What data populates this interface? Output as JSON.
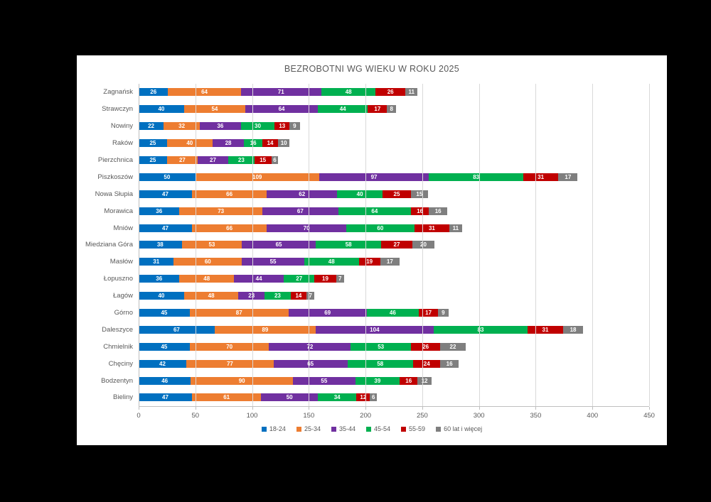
{
  "chart_data": {
    "type": "bar",
    "orientation": "horizontal",
    "stacked": true,
    "title": "BEZROBOTNI WG WIEKU W ROKU 2025",
    "categories": [
      "Zagnańsk",
      "Strawczyn",
      "Nowiny",
      "Raków",
      "Pierzchnica",
      "Piszkoszów",
      "Nowa Słupia",
      "Morawica",
      "Mniów",
      "Miedziana Góra",
      "Masłów",
      "Łopuszno",
      "Łagów",
      "Górno",
      "Daleszyce",
      "Chmielnik",
      "Chęciny",
      "Bodzentyn",
      "Bieliny"
    ],
    "series": [
      {
        "name": "18-24",
        "color": "#0070C0",
        "values": [
          26,
          40,
          22,
          25,
          25,
          50,
          47,
          36,
          47,
          38,
          31,
          36,
          40,
          45,
          67,
          45,
          42,
          46,
          47
        ]
      },
      {
        "name": "25-34",
        "color": "#ED7D31",
        "values": [
          64,
          54,
          32,
          40,
          27,
          109,
          66,
          73,
          66,
          53,
          60,
          48,
          48,
          87,
          89,
          70,
          77,
          90,
          61
        ]
      },
      {
        "name": "35-44",
        "color": "#7030A0",
        "values": [
          71,
          64,
          36,
          28,
          27,
          97,
          62,
          67,
          70,
          65,
          55,
          44,
          23,
          69,
          104,
          72,
          65,
          55,
          50
        ]
      },
      {
        "name": "45-54",
        "color": "#00B050",
        "values": [
          48,
          44,
          30,
          16,
          23,
          83,
          40,
          64,
          60,
          58,
          48,
          27,
          23,
          46,
          83,
          53,
          58,
          39,
          34
        ]
      },
      {
        "name": "55-59",
        "color": "#C00000",
        "values": [
          26,
          17,
          13,
          14,
          15,
          31,
          25,
          16,
          31,
          27,
          19,
          19,
          14,
          17,
          31,
          26,
          24,
          16,
          12
        ]
      },
      {
        "name": "60 lat i więcej",
        "color": "#7F7F7F",
        "values": [
          11,
          8,
          9,
          10,
          6,
          17,
          15,
          16,
          11,
          20,
          17,
          7,
          7,
          9,
          18,
          22,
          16,
          12,
          6
        ]
      }
    ],
    "x_ticks": [
      0,
      50,
      100,
      150,
      200,
      250,
      300,
      350,
      400,
      450
    ],
    "xlim": [
      0,
      450
    ],
    "grid": true,
    "legend_position": "bottom",
    "data_labels": "inside-white"
  }
}
